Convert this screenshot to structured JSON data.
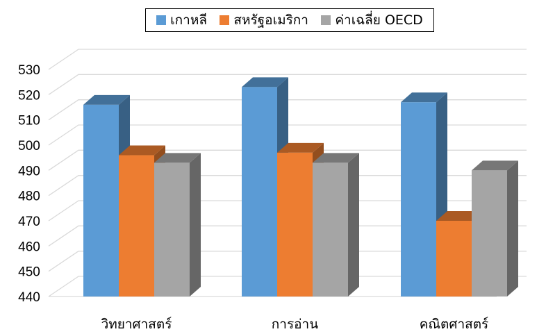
{
  "chart_data": {
    "type": "bar",
    "categories": [
      "วิทยาศาสตร์",
      "การอ่าน",
      "คณิตศาสตร์"
    ],
    "series": [
      {
        "name": "เกาหลี",
        "values": [
          516,
          523,
          517
        ],
        "color": "#5B9BD5"
      },
      {
        "name": "สหรัฐอเมริกา",
        "values": [
          496,
          497,
          470
        ],
        "color": "#ED7D31"
      },
      {
        "name": "ค่าเฉลี่ย OECD",
        "values": [
          493,
          493,
          490
        ],
        "color": "#A5A5A5"
      }
    ],
    "ylim": [
      440,
      530
    ],
    "yticks": [
      440,
      450,
      460,
      470,
      480,
      490,
      500,
      510,
      520,
      530
    ],
    "grid": true,
    "legend": "top-center",
    "style": "3d-clustered-column"
  }
}
